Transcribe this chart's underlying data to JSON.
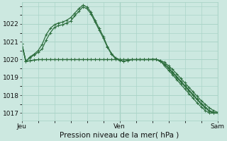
{
  "bg_color": "#cce8e0",
  "grid_color": "#aad4c8",
  "line_color": "#2d6e3e",
  "title": "Pression niveau de la mer( hPa )",
  "ylim": [
    1016.6,
    1023.2
  ],
  "yticks": [
    1017,
    1018,
    1019,
    1020,
    1021,
    1022
  ],
  "xtick_labels": [
    "Jeu",
    "Ven",
    "Sam"
  ],
  "xtick_positions": [
    0,
    24,
    48
  ],
  "series": [
    [
      1020.9,
      1019.9,
      1020.1,
      1020.25,
      1020.4,
      1020.6,
      1021.1,
      1021.5,
      1021.8,
      1021.9,
      1021.95,
      1022.05,
      1022.15,
      1022.45,
      1022.7,
      1022.95,
      1022.85,
      1022.55,
      1022.1,
      1021.65,
      1021.2,
      1020.7,
      1020.3,
      1020.05,
      1019.95,
      1019.9,
      1019.95,
      1020.0,
      1020.0,
      1020.0,
      1020.0,
      1020.0,
      1020.0,
      1020.0,
      1019.95,
      1019.85,
      1019.65,
      1019.45,
      1019.2,
      1018.95,
      1018.7,
      1018.45,
      1018.2,
      1017.95,
      1017.7,
      1017.5,
      1017.3,
      1017.15,
      1017.05
    ],
    [
      1020.9,
      1019.9,
      1020.15,
      1020.3,
      1020.5,
      1020.85,
      1021.4,
      1021.75,
      1021.95,
      1022.05,
      1022.1,
      1022.2,
      1022.35,
      1022.6,
      1022.85,
      1023.05,
      1022.95,
      1022.65,
      1022.2,
      1021.75,
      1021.3,
      1020.75,
      1020.35,
      1020.1,
      1020.0,
      1019.9,
      1019.95,
      1020.0,
      1020.0,
      1020.0,
      1020.0,
      1020.0,
      1020.0,
      1020.0,
      1019.9,
      1019.75,
      1019.5,
      1019.25,
      1019.0,
      1018.75,
      1018.5,
      1018.25,
      1018.0,
      1017.75,
      1017.5,
      1017.3,
      1017.1,
      1017.0,
      1017.0
    ],
    [
      1020.9,
      1019.9,
      1019.93,
      1019.97,
      1020.0,
      1020.0,
      1020.0,
      1020.0,
      1020.0,
      1020.0,
      1020.0,
      1020.0,
      1020.0,
      1020.0,
      1020.0,
      1020.0,
      1020.0,
      1020.0,
      1020.0,
      1020.0,
      1020.0,
      1020.0,
      1020.0,
      1020.0,
      1020.0,
      1020.0,
      1020.0,
      1020.0,
      1020.0,
      1020.0,
      1020.0,
      1020.0,
      1020.0,
      1020.0,
      1019.9,
      1019.75,
      1019.55,
      1019.3,
      1019.05,
      1018.8,
      1018.55,
      1018.3,
      1018.05,
      1017.8,
      1017.55,
      1017.35,
      1017.15,
      1017.05,
      1017.0
    ],
    [
      1020.9,
      1019.9,
      1019.93,
      1019.97,
      1020.0,
      1020.0,
      1020.0,
      1020.0,
      1020.0,
      1020.0,
      1020.0,
      1020.0,
      1020.0,
      1020.0,
      1020.0,
      1020.0,
      1020.0,
      1020.0,
      1020.0,
      1020.0,
      1020.0,
      1020.0,
      1020.0,
      1020.0,
      1020.0,
      1020.0,
      1020.0,
      1020.0,
      1020.0,
      1020.0,
      1020.0,
      1020.0,
      1020.02,
      1020.02,
      1019.93,
      1019.65,
      1019.4,
      1019.15,
      1018.88,
      1018.62,
      1018.36,
      1018.1,
      1017.84,
      1017.58,
      1017.35,
      1017.15,
      1017.0,
      1017.0,
      1017.0
    ]
  ],
  "n_points": 49,
  "marker": "+",
  "marker_size": 3.0,
  "line_width": 0.9,
  "tick_fontsize": 6.5,
  "xlabel_fontsize": 7.5
}
